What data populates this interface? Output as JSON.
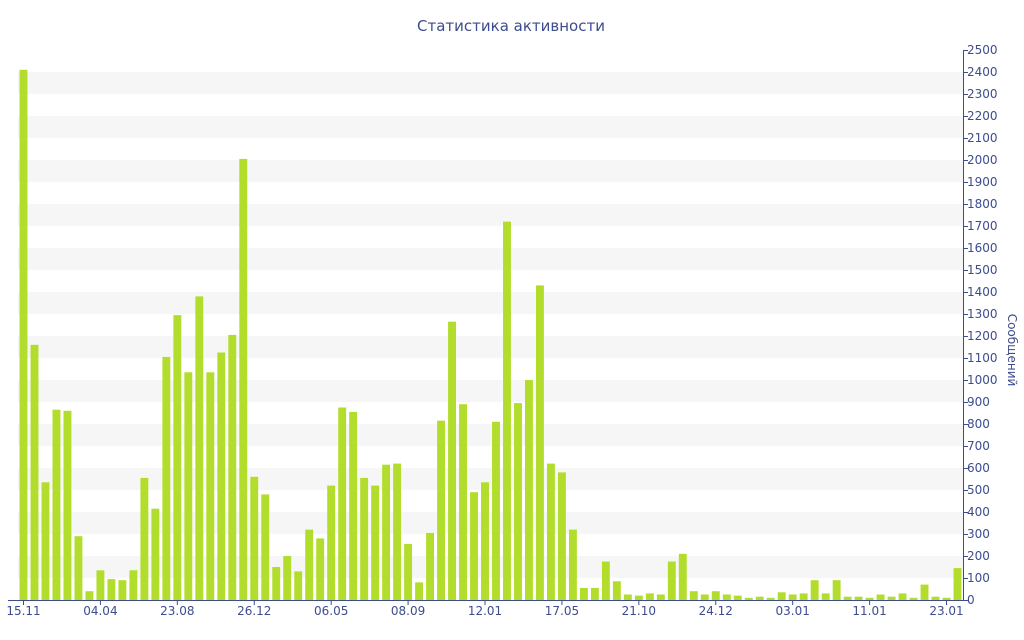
{
  "chart_data": {
    "type": "bar",
    "title": "Статистика активности",
    "ylabel": "Сообщений",
    "xlabel": "",
    "ylim": [
      0,
      2500
    ],
    "ytick_step": 100,
    "y_axis_side": "right",
    "grid": "horizontal bands",
    "legend": "none",
    "x_tick_labels": [
      {
        "index": 0,
        "label": "15.11"
      },
      {
        "index": 7,
        "label": "04.04"
      },
      {
        "index": 14,
        "label": "23.08"
      },
      {
        "index": 21,
        "label": "26.12"
      },
      {
        "index": 28,
        "label": "06.05"
      },
      {
        "index": 35,
        "label": "08.09"
      },
      {
        "index": 42,
        "label": "12.01"
      },
      {
        "index": 49,
        "label": "17.05"
      },
      {
        "index": 56,
        "label": "21.10"
      },
      {
        "index": 63,
        "label": "24.12"
      },
      {
        "index": 70,
        "label": "03.01"
      },
      {
        "index": 77,
        "label": "11.01"
      },
      {
        "index": 84,
        "label": "23.01"
      }
    ],
    "values": [
      2410,
      1160,
      535,
      865,
      860,
      290,
      40,
      135,
      95,
      90,
      135,
      555,
      415,
      1105,
      1295,
      1035,
      1380,
      1035,
      1125,
      1205,
      2005,
      560,
      480,
      150,
      200,
      130,
      320,
      280,
      520,
      875,
      855,
      555,
      520,
      615,
      620,
      255,
      80,
      305,
      815,
      1265,
      890,
      490,
      535,
      810,
      1720,
      895,
      1000,
      1430,
      620,
      580,
      320,
      55,
      55,
      175,
      85,
      25,
      20,
      30,
      25,
      175,
      210,
      40,
      25,
      40,
      25,
      20,
      10,
      15,
      10,
      35,
      25,
      30,
      90,
      30,
      90,
      15,
      15,
      10,
      25,
      15,
      30,
      10,
      70,
      15,
      10,
      145
    ],
    "colors": {
      "bar": "#b2dd2c",
      "band": "#f6f6f6",
      "axis": "#3d4c8e",
      "text": "#3d4c8e"
    }
  }
}
